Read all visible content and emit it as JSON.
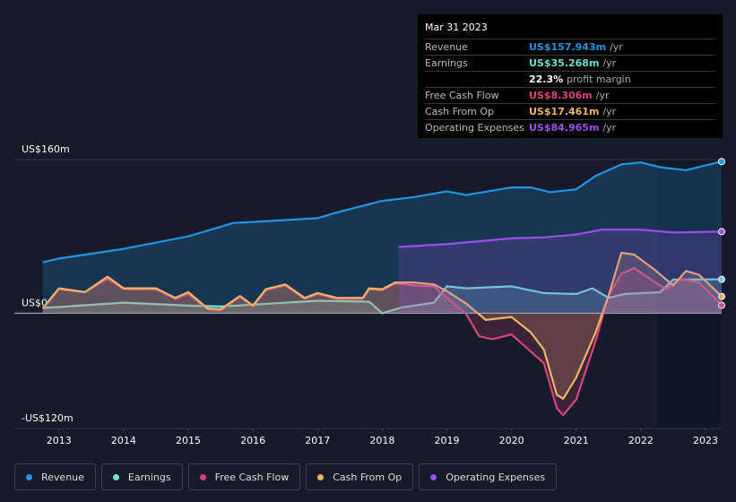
{
  "chart_data": {
    "type": "line",
    "ylim": [
      -120,
      160
    ],
    "yticks": [
      {
        "value": 160,
        "label": "US$160m"
      },
      {
        "value": 0,
        "label": "US$0"
      },
      {
        "value": -120,
        "label": "-US$120m"
      }
    ],
    "xlim": [
      2012.31,
      2023.25
    ],
    "xticks": [
      2013,
      2014,
      2015,
      2016,
      2017,
      2018,
      2019,
      2020,
      2021,
      2022,
      2023
    ],
    "series": [
      {
        "name": "Revenue",
        "color": "#2394df",
        "x": [
          2012.75,
          2013,
          2014,
          2015,
          2015.7,
          2016,
          2017,
          2017.3,
          2018,
          2018.5,
          2019,
          2019.3,
          2020,
          2020.3,
          2020.6,
          2021,
          2021.3,
          2021.7,
          2022,
          2022.3,
          2022.7,
          2023.25
        ],
        "values": [
          53,
          57,
          67,
          80,
          94,
          95,
          99,
          105,
          117,
          121,
          127,
          123,
          131,
          131,
          126,
          129,
          143,
          155,
          157,
          152,
          149,
          157.943
        ]
      },
      {
        "name": "Earnings",
        "color": "#6ee0d0",
        "x": [
          2012.75,
          2013,
          2014,
          2015,
          2015.5,
          2016,
          2017,
          2017.8,
          2018,
          2018.3,
          2018.8,
          2019,
          2019.3,
          2020,
          2020.5,
          2021,
          2021.25,
          2021.5,
          2021.75,
          2022.3,
          2022.5,
          2023.25
        ],
        "values": [
          5.6,
          6.5,
          11,
          8,
          7,
          9,
          13,
          12,
          0,
          6,
          11,
          28,
          26,
          28,
          21,
          20,
          26,
          16,
          20,
          22,
          35,
          35.268
        ]
      },
      {
        "name": "Free Cash Flow",
        "color": "#d6457e",
        "x": [
          2012.75,
          2013,
          2013.4,
          2013.75,
          2014,
          2014.5,
          2014.8,
          2015,
          2015.3,
          2015.5,
          2015.8,
          2016,
          2016.2,
          2016.5,
          2016.8,
          2017,
          2017.3,
          2017.7,
          2017.8,
          2018,
          2018.2,
          2018.5,
          2018.8,
          2019,
          2019.3,
          2019.5,
          2019.7,
          2020,
          2020.3,
          2020.5,
          2020.7,
          2020.8,
          2021,
          2021.3,
          2021.5,
          2021.7,
          2021.9,
          2022.2,
          2022.4,
          2022.6,
          2022.9,
          2023.25
        ],
        "values": [
          5,
          25,
          22,
          36,
          25,
          25,
          15,
          20,
          4,
          3,
          17,
          7,
          24,
          29,
          15,
          20,
          15,
          15,
          25,
          24,
          31,
          29,
          28,
          16,
          -1,
          -24,
          -27,
          -22,
          -40,
          -52,
          -99,
          -106,
          -90,
          -29,
          18,
          41,
          47,
          33,
          25,
          36,
          32,
          8.306
        ]
      },
      {
        "name": "Cash From Op",
        "color": "#f0b468",
        "x": [
          2012.75,
          2013,
          2013.4,
          2013.75,
          2014,
          2014.5,
          2014.8,
          2015,
          2015.3,
          2015.5,
          2015.8,
          2016,
          2016.2,
          2016.5,
          2016.8,
          2017,
          2017.3,
          2017.7,
          2017.8,
          2018,
          2018.2,
          2018.5,
          2018.8,
          2019,
          2019.3,
          2019.6,
          2020,
          2020.3,
          2020.5,
          2020.7,
          2020.8,
          2021,
          2021.3,
          2021.5,
          2021.7,
          2021.9,
          2022.2,
          2022.5,
          2022.7,
          2022.9,
          2023.25
        ],
        "values": [
          5,
          26,
          22,
          38,
          26,
          26,
          16,
          22,
          5,
          4,
          18,
          8,
          25,
          30,
          16,
          21,
          16,
          16,
          26,
          25,
          32,
          32,
          30,
          23,
          10,
          -7,
          -4,
          -20,
          -38,
          -85,
          -89,
          -67,
          -20,
          18,
          63,
          61,
          46,
          29,
          44,
          40,
          17.461
        ]
      },
      {
        "name": "Operating Expenses",
        "color": "#9d4ee8",
        "x": [
          2018.25,
          2019,
          2019.5,
          2020,
          2020.5,
          2021,
          2021.4,
          2022,
          2022.5,
          2023.25
        ],
        "values": [
          69,
          72,
          75,
          78,
          79,
          82,
          87,
          87,
          84,
          84.965
        ]
      }
    ]
  },
  "tooltip": {
    "date": "Mar 31 2023",
    "rows": [
      {
        "label": "Revenue",
        "value": "US$157.943m",
        "unit": "/yr"
      },
      {
        "label": "Earnings",
        "value": "US$35.268m",
        "unit": "/yr"
      },
      {
        "label": "",
        "value": "22.3%",
        "unit": "profit margin"
      },
      {
        "label": "Free Cash Flow",
        "value": "US$8.306m",
        "unit": "/yr"
      },
      {
        "label": "Cash From Op",
        "value": "US$17.461m",
        "unit": "/yr"
      },
      {
        "label": "Operating Expenses",
        "value": "US$84.965m",
        "unit": "/yr"
      }
    ]
  }
}
